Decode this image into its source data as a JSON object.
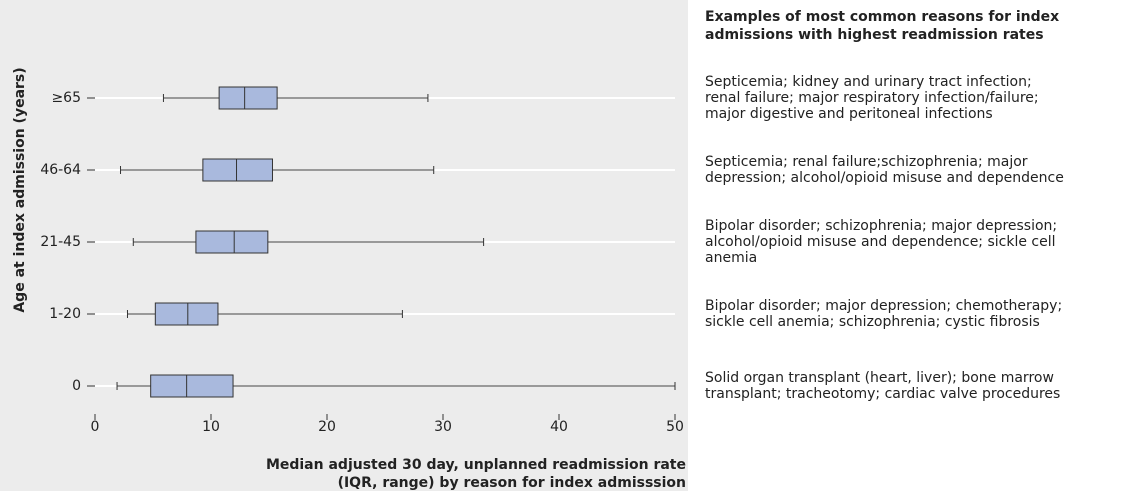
{
  "chart_data": {
    "type": "box",
    "ylabel": "Age at index admission (years)",
    "xlabel": [
      "Median adjusted 30 day, unplanned readmission rate",
      "(IQR, range) by reason for index admisssion"
    ],
    "categories": [
      "0",
      "1-20",
      "21-45",
      "46-64",
      "≥65"
    ],
    "min": [
      1.9,
      2.8,
      3.3,
      2.2,
      5.9
    ],
    "q1": [
      4.8,
      5.2,
      8.7,
      9.3,
      10.7
    ],
    "median": [
      7.9,
      8.0,
      12.0,
      12.2,
      12.9
    ],
    "q3": [
      11.9,
      10.6,
      14.9,
      15.3,
      15.7
    ],
    "max": [
      50,
      26.5,
      33.5,
      29.2,
      28.7
    ],
    "color": "#a9b9dd",
    "xlim": [
      0,
      50
    ],
    "xticks": [
      0,
      10,
      20,
      30,
      40,
      50
    ],
    "grid": true,
    "reasons_title": [
      "Examples of most common reasons for index",
      "admissions with highest readmission rates"
    ],
    "reasons": [
      [
        "Solid organ transplant (heart, liver); bone marrow",
        "transplant; tracheotomy; cardiac valve procedures"
      ],
      [
        "Bipolar disorder; major depression; chemotherapy;",
        "sickle cell anemia; schizophrenia; cystic fibrosis"
      ],
      [
        "Bipolar disorder; schizophrenia; major depression;",
        "alcohol/opioid misuse and dependence; sickle cell",
        "anemia"
      ],
      [
        "Septicemia; renal failure;schizophrenia; major",
        "depression; alcohol/opioid misuse and dependence"
      ],
      [
        "Septicemia; kidney and urinary tract infection;",
        "renal failure; major respiratory infection/failure;",
        "major digestive and peritoneal infections"
      ]
    ]
  }
}
